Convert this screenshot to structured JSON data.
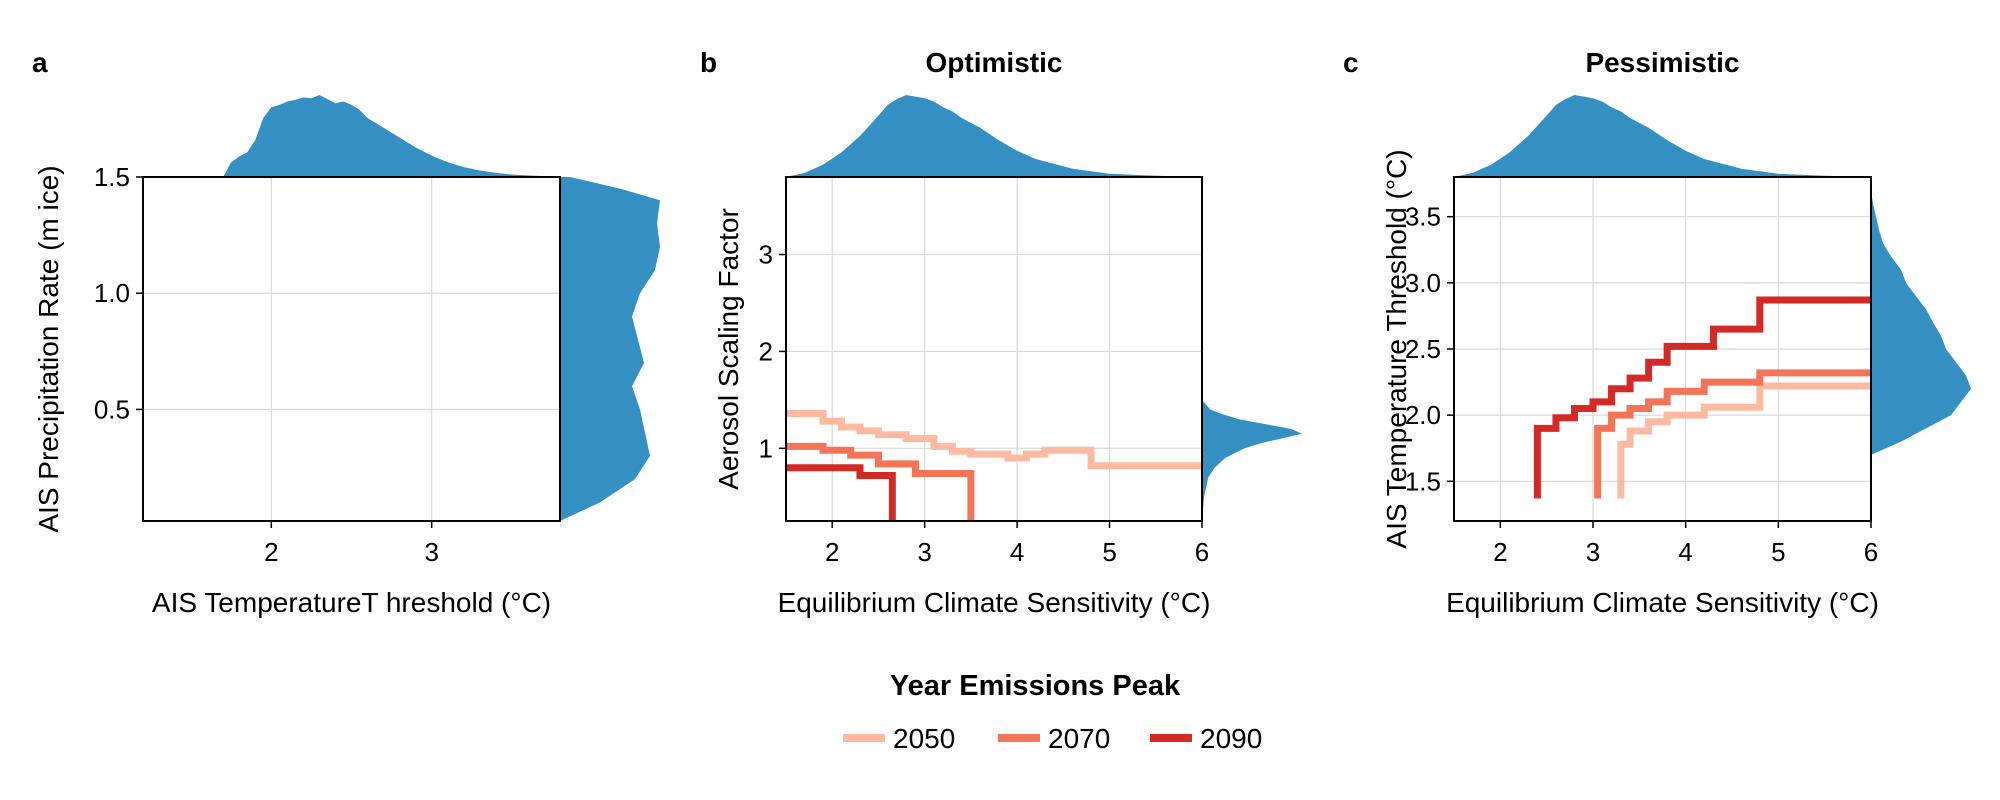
{
  "colors": {
    "density": "#348fc2",
    "y2050": "#fcbba1",
    "y2070": "#f47458",
    "y2090": "#d42a26"
  },
  "legend": {
    "title": "Year Emissions Peak",
    "entries": [
      {
        "label": "2050",
        "color": "#fcbba1"
      },
      {
        "label": "2070",
        "color": "#f47458"
      },
      {
        "label": "2090",
        "color": "#d42a26"
      }
    ],
    "placement": "bottom-center"
  },
  "chart_data": [
    {
      "type": "line",
      "panel": "a",
      "title": "",
      "xlabel": "AIS TemperatureT hreshold (°C)",
      "ylabel": "AIS Precipitation Rate (m ice)",
      "xlim": [
        1.2,
        3.8
      ],
      "ylim": [
        0.02,
        1.5
      ],
      "xticks": [
        2,
        3
      ],
      "xtick_labels": [
        "2",
        "3"
      ],
      "yticks": [
        0.5,
        1.0,
        1.5
      ],
      "ytick_labels": [
        "0.5",
        "1.0",
        "1.5"
      ],
      "grid": true,
      "series": [],
      "marginal_x": {
        "x": [
          1.7,
          1.75,
          1.8,
          1.85,
          1.9,
          1.95,
          2.0,
          2.05,
          2.1,
          2.15,
          2.2,
          2.25,
          2.3,
          2.35,
          2.4,
          2.45,
          2.5,
          2.55,
          2.6,
          2.7,
          2.8,
          2.9,
          3.0,
          3.1,
          3.2,
          3.3,
          3.4,
          3.5,
          3.6,
          3.7,
          3.8
        ],
        "density": [
          0.0,
          0.18,
          0.25,
          0.3,
          0.45,
          0.72,
          0.85,
          0.88,
          0.92,
          0.94,
          0.97,
          0.96,
          1.0,
          0.95,
          0.9,
          0.92,
          0.88,
          0.82,
          0.72,
          0.6,
          0.48,
          0.36,
          0.26,
          0.18,
          0.12,
          0.08,
          0.05,
          0.03,
          0.02,
          0.01,
          0.0
        ]
      },
      "marginal_y": {
        "y": [
          0.02,
          0.1,
          0.2,
          0.3,
          0.4,
          0.5,
          0.6,
          0.7,
          0.8,
          0.9,
          1.0,
          1.1,
          1.2,
          1.3,
          1.4,
          1.45,
          1.5
        ],
        "density": [
          0.0,
          0.4,
          0.75,
          0.9,
          0.85,
          0.8,
          0.72,
          0.84,
          0.78,
          0.72,
          0.8,
          0.95,
          1.0,
          0.97,
          1.0,
          0.6,
          0.1
        ]
      }
    },
    {
      "type": "line",
      "panel": "b",
      "title": "Optimistic",
      "xlabel": "Equilibrium Climate Sensitivity (°C)",
      "ylabel": "Aerosol Scaling Factor",
      "xlim": [
        1.5,
        6.0
      ],
      "ylim": [
        0.25,
        3.8
      ],
      "xticks": [
        2,
        3,
        4,
        5,
        6
      ],
      "xtick_labels": [
        "2",
        "3",
        "4",
        "5",
        "6"
      ],
      "yticks": [
        1,
        2,
        3
      ],
      "ytick_labels": [
        "1",
        "2",
        "3"
      ],
      "grid": true,
      "series": [
        {
          "name": "2050",
          "x": [
            1.5,
            1.9,
            1.9,
            2.1,
            2.1,
            2.3,
            2.3,
            2.5,
            2.5,
            2.8,
            2.8,
            3.1,
            3.1,
            3.3,
            3.3,
            3.5,
            3.5,
            3.9,
            3.9,
            4.1,
            4.1,
            4.3,
            4.3,
            4.8,
            4.8,
            6.0
          ],
          "y": [
            1.36,
            1.36,
            1.28,
            1.28,
            1.22,
            1.22,
            1.18,
            1.18,
            1.14,
            1.14,
            1.1,
            1.1,
            1.02,
            1.02,
            0.97,
            0.97,
            0.94,
            0.94,
            0.9,
            0.9,
            0.94,
            0.94,
            0.98,
            0.98,
            0.82,
            0.82
          ]
        },
        {
          "name": "2070",
          "x": [
            1.5,
            1.9,
            1.9,
            2.2,
            2.2,
            2.5,
            2.5,
            2.9,
            2.9,
            3.5,
            3.5
          ],
          "y": [
            1.02,
            1.02,
            0.98,
            0.98,
            0.93,
            0.93,
            0.84,
            0.84,
            0.74,
            0.74,
            0.25
          ]
        },
        {
          "name": "2090",
          "x": [
            1.5,
            2.3,
            2.3,
            2.65,
            2.65
          ],
          "y": [
            0.8,
            0.8,
            0.72,
            0.72,
            0.25
          ]
        }
      ],
      "marginal_x": {
        "x": [
          1.5,
          1.7,
          1.9,
          2.1,
          2.3,
          2.5,
          2.6,
          2.7,
          2.8,
          2.9,
          3.0,
          3.1,
          3.2,
          3.3,
          3.4,
          3.6,
          3.8,
          4.0,
          4.2,
          4.4,
          4.6,
          4.8,
          5.0,
          5.4,
          5.8,
          6.0
        ],
        "density": [
          0.0,
          0.05,
          0.15,
          0.3,
          0.5,
          0.75,
          0.88,
          0.95,
          1.0,
          0.98,
          0.96,
          0.92,
          0.85,
          0.8,
          0.72,
          0.6,
          0.45,
          0.32,
          0.22,
          0.16,
          0.1,
          0.07,
          0.04,
          0.02,
          0.005,
          0.0
        ]
      },
      "marginal_y": {
        "y": [
          0.25,
          0.5,
          0.7,
          0.8,
          0.9,
          1.0,
          1.05,
          1.1,
          1.15,
          1.2,
          1.25,
          1.3,
          1.35,
          1.4,
          1.5
        ],
        "density": [
          0.0,
          0.02,
          0.06,
          0.12,
          0.22,
          0.4,
          0.55,
          0.75,
          0.95,
          0.85,
          0.6,
          0.35,
          0.2,
          0.08,
          0.0
        ]
      }
    },
    {
      "type": "line",
      "panel": "c",
      "title": "Pessimistic",
      "xlabel": "Equilibrium Climate Sensitivity (°C)",
      "ylabel": "AIS Temperature Threshold (°C)",
      "xlim": [
        1.5,
        6.0
      ],
      "ylim": [
        1.2,
        3.8
      ],
      "xticks": [
        2,
        3,
        4,
        5,
        6
      ],
      "xtick_labels": [
        "2",
        "3",
        "4",
        "5",
        "6"
      ],
      "yticks": [
        1.5,
        2.0,
        2.5,
        3.0,
        3.5
      ],
      "ytick_labels": [
        "1.5",
        "2.0",
        "2.5",
        "3.0",
        "3.5"
      ],
      "grid": true,
      "series": [
        {
          "name": "2050",
          "x": [
            3.3,
            3.3,
            3.4,
            3.4,
            3.6,
            3.6,
            3.8,
            3.8,
            4.2,
            4.2,
            4.8,
            4.8,
            6.0
          ],
          "y": [
            1.37,
            1.78,
            1.78,
            1.88,
            1.88,
            1.95,
            1.95,
            2.0,
            2.0,
            2.06,
            2.06,
            2.22,
            2.22
          ]
        },
        {
          "name": "2070",
          "x": [
            3.05,
            3.05,
            3.2,
            3.2,
            3.4,
            3.4,
            3.6,
            3.6,
            3.8,
            3.8,
            4.2,
            4.2,
            4.8,
            4.8,
            6.0
          ],
          "y": [
            1.37,
            1.9,
            1.9,
            2.0,
            2.0,
            2.05,
            2.05,
            2.1,
            2.1,
            2.18,
            2.18,
            2.25,
            2.25,
            2.32,
            2.32
          ]
        },
        {
          "name": "2090",
          "x": [
            2.4,
            2.4,
            2.6,
            2.6,
            2.8,
            2.8,
            3.0,
            3.0,
            3.2,
            3.2,
            3.4,
            3.4,
            3.6,
            3.6,
            3.8,
            3.8,
            4.3,
            4.3,
            4.8,
            4.8,
            6.0
          ],
          "y": [
            1.37,
            1.9,
            1.9,
            1.98,
            1.98,
            2.05,
            2.05,
            2.1,
            2.1,
            2.2,
            2.2,
            2.28,
            2.28,
            2.4,
            2.4,
            2.52,
            2.52,
            2.65,
            2.65,
            2.87,
            2.87
          ]
        }
      ],
      "marginal_x": {
        "x": [
          1.5,
          1.7,
          1.9,
          2.1,
          2.3,
          2.5,
          2.6,
          2.7,
          2.8,
          2.9,
          3.0,
          3.1,
          3.2,
          3.3,
          3.4,
          3.6,
          3.8,
          4.0,
          4.2,
          4.4,
          4.6,
          4.8,
          5.0,
          5.4,
          5.8,
          6.0
        ],
        "density": [
          0.0,
          0.05,
          0.15,
          0.3,
          0.5,
          0.75,
          0.88,
          0.95,
          1.0,
          0.98,
          0.96,
          0.92,
          0.85,
          0.8,
          0.72,
          0.6,
          0.45,
          0.32,
          0.22,
          0.16,
          0.1,
          0.07,
          0.04,
          0.02,
          0.005,
          0.0
        ]
      },
      "marginal_y": {
        "y": [
          1.7,
          1.8,
          1.9,
          2.0,
          2.1,
          2.2,
          2.3,
          2.4,
          2.5,
          2.6,
          2.7,
          2.8,
          2.9,
          3.0,
          3.1,
          3.2,
          3.3,
          3.4,
          3.5,
          3.6,
          3.7
        ],
        "density": [
          0.0,
          0.3,
          0.55,
          0.8,
          0.9,
          1.0,
          0.95,
          0.85,
          0.75,
          0.7,
          0.62,
          0.55,
          0.45,
          0.35,
          0.3,
          0.2,
          0.12,
          0.08,
          0.05,
          0.02,
          0.0
        ]
      }
    }
  ]
}
